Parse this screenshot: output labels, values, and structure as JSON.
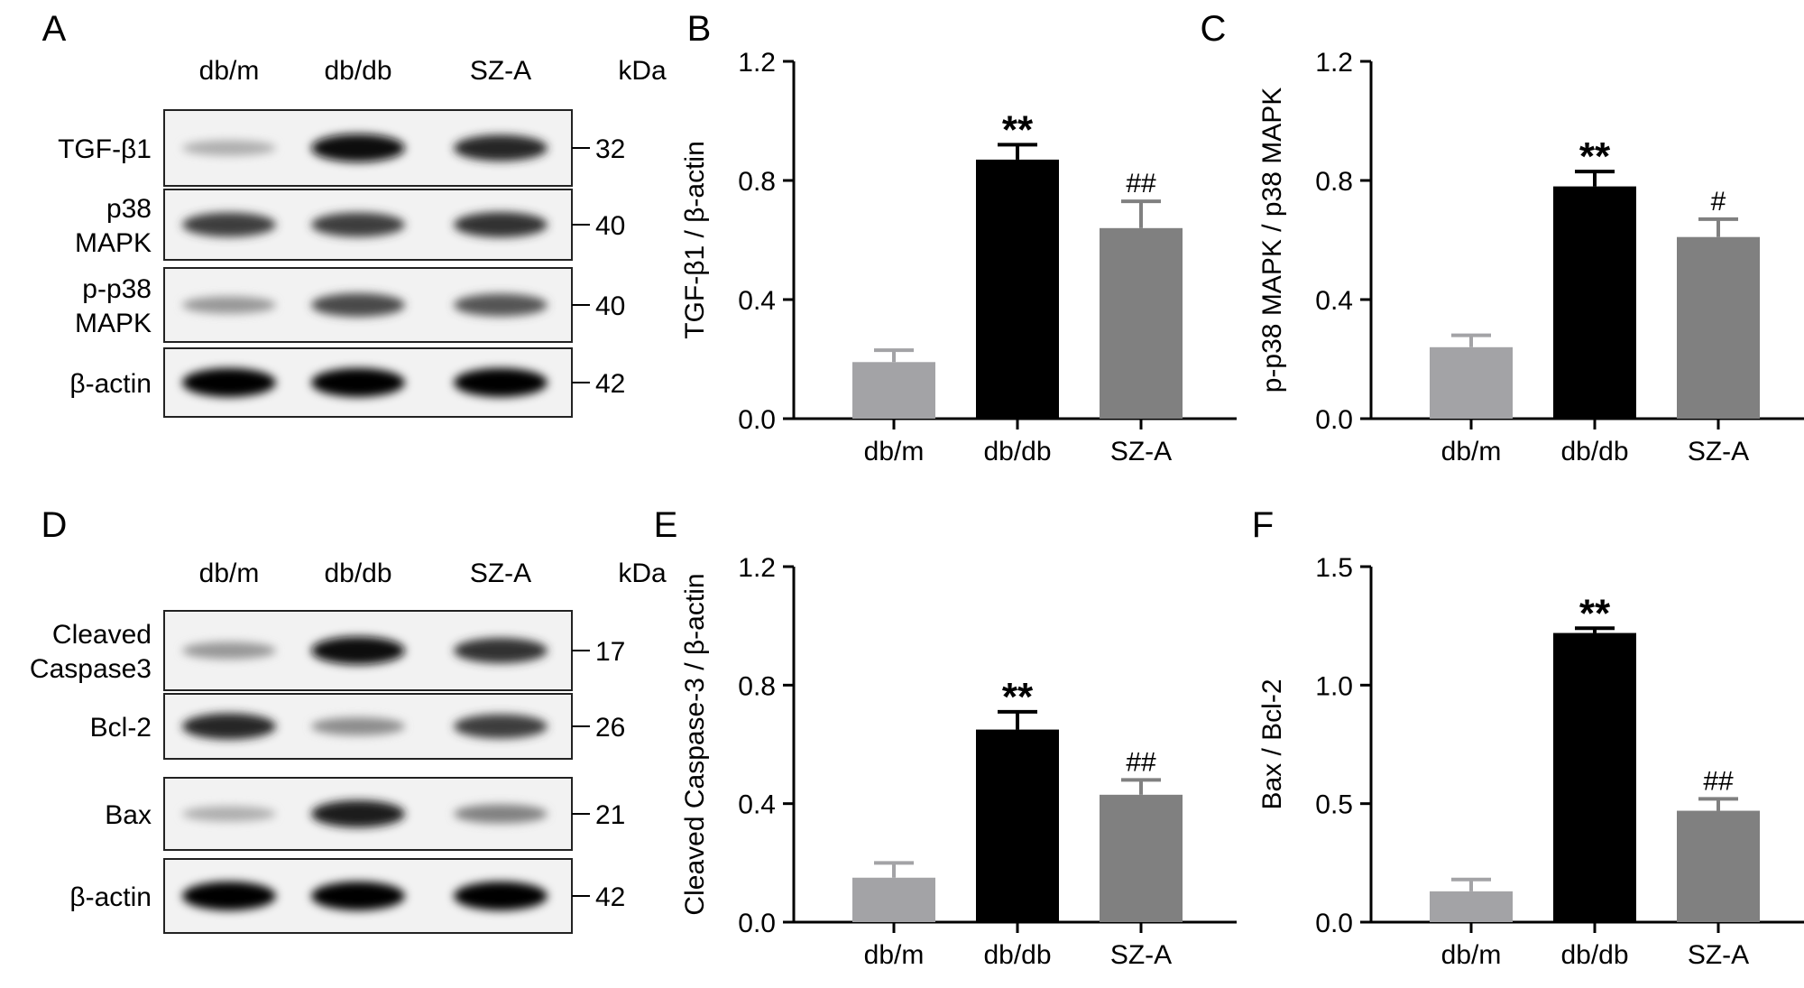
{
  "blot_panels": [
    {
      "letter": "A",
      "lanes": [
        "db/m",
        "db/db",
        "SZ-A"
      ],
      "kda_label": "kDa",
      "bands": [
        {
          "label": "TGF-β1",
          "kda": "32",
          "intensity": [
            0.25,
            0.95,
            0.85
          ]
        },
        {
          "label": "p38\nMAPK",
          "kda": "40",
          "intensity": [
            0.75,
            0.75,
            0.8
          ]
        },
        {
          "label": "p-p38\nMAPK",
          "kda": "40",
          "intensity": [
            0.35,
            0.7,
            0.65
          ]
        },
        {
          "label": "β-actin",
          "kda": "42",
          "intensity": [
            1.0,
            1.0,
            1.0
          ]
        }
      ]
    },
    {
      "letter": "D",
      "lanes": [
        "db/m",
        "db/db",
        "SZ-A"
      ],
      "kda_label": "kDa",
      "bands": [
        {
          "label": "Cleaved\nCaspase3",
          "kda": "17",
          "intensity": [
            0.35,
            0.95,
            0.8
          ]
        },
        {
          "label": "Bcl-2",
          "kda": "26",
          "intensity": [
            0.85,
            0.4,
            0.75
          ]
        },
        {
          "label": "Bax",
          "kda": "21",
          "intensity": [
            0.25,
            0.9,
            0.45
          ]
        },
        {
          "label": "β-actin",
          "kda": "42",
          "intensity": [
            1.0,
            1.0,
            1.0
          ]
        }
      ]
    }
  ],
  "chart_data": [
    {
      "letter": "B",
      "type": "bar",
      "categories": [
        "db/m",
        "db/db",
        "SZ-A"
      ],
      "values": [
        0.19,
        0.87,
        0.64
      ],
      "errors": [
        0.04,
        0.05,
        0.09
      ],
      "annotations": [
        "",
        "**",
        "##"
      ],
      "ylabel": "TGF-β1 / β-actin",
      "ylim": [
        0,
        1.2
      ],
      "yticks": [
        "0.0",
        "0.4",
        "0.8",
        "1.2"
      ],
      "ytick_values": [
        0,
        0.4,
        0.8,
        1.2
      ],
      "colors": [
        "#a3a3a6",
        "#000000",
        "#808080"
      ]
    },
    {
      "letter": "C",
      "type": "bar",
      "categories": [
        "db/m",
        "db/db",
        "SZ-A"
      ],
      "values": [
        0.24,
        0.78,
        0.61
      ],
      "errors": [
        0.04,
        0.05,
        0.06
      ],
      "annotations": [
        "",
        "**",
        "#"
      ],
      "ylabel": "p-p38 MAPK / p38 MAPK",
      "ylim": [
        0,
        1.2
      ],
      "yticks": [
        "0.0",
        "0.4",
        "0.8",
        "1.2"
      ],
      "ytick_values": [
        0,
        0.4,
        0.8,
        1.2
      ],
      "colors": [
        "#a3a3a6",
        "#000000",
        "#808080"
      ]
    },
    {
      "letter": "E",
      "type": "bar",
      "categories": [
        "db/m",
        "db/db",
        "SZ-A"
      ],
      "values": [
        0.15,
        0.65,
        0.43
      ],
      "errors": [
        0.05,
        0.06,
        0.05
      ],
      "annotations": [
        "",
        "**",
        "##"
      ],
      "ylabel": "Cleaved Caspase-3 / β-actin",
      "ylim": [
        0,
        1.2
      ],
      "yticks": [
        "0.0",
        "0.4",
        "0.8",
        "1.2"
      ],
      "ytick_values": [
        0,
        0.4,
        0.8,
        1.2
      ],
      "colors": [
        "#a3a3a6",
        "#000000",
        "#808080"
      ]
    },
    {
      "letter": "F",
      "type": "bar",
      "categories": [
        "db/m",
        "db/db",
        "SZ-A"
      ],
      "values": [
        0.13,
        1.22,
        0.47
      ],
      "errors": [
        0.05,
        0.02,
        0.05
      ],
      "annotations": [
        "",
        "**",
        "##"
      ],
      "ylabel": "Bax / Bcl-2",
      "ylim": [
        0,
        1.5
      ],
      "yticks": [
        "0.0",
        "0.5",
        "1.0",
        "1.5"
      ],
      "ytick_values": [
        0,
        0.5,
        1.0,
        1.5
      ],
      "colors": [
        "#a3a3a6",
        "#000000",
        "#808080"
      ]
    }
  ]
}
